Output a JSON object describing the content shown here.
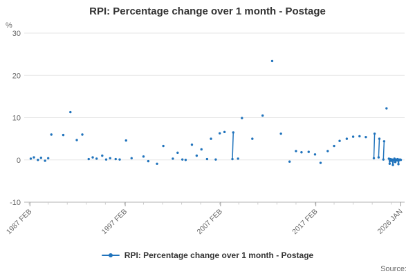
{
  "chart": {
    "title": "RPI: Percentage change over 1 month - Postage",
    "unit_label": "%"
  },
  "legend": {
    "label": "RPI: Percentage change over 1 month - Postage"
  },
  "source": {
    "label": "Source:"
  },
  "colors": {
    "series": "#2073bc",
    "grid": "#e6e6e6",
    "axis": "#b3b3b3",
    "tick_major": "#999999",
    "tick_minor": "#cccccc",
    "axis_text": "#666666",
    "title_text": "#333333"
  },
  "chart_data": {
    "type": "scatter",
    "title": "RPI: Percentage change over 1 month - Postage",
    "xlabel": "",
    "ylabel": "%",
    "ylim": [
      -10,
      30
    ],
    "yticks": [
      -10,
      0,
      10,
      20,
      30
    ],
    "xticks": [
      {
        "label": "1987 FEB",
        "year": 1987.083
      },
      {
        "label": "1997 FEB",
        "year": 1997.083
      },
      {
        "label": "2007 FEB",
        "year": 2007.083
      },
      {
        "label": "2017 FEB",
        "year": 2017.083
      },
      {
        "label": "2026 JAN",
        "year": 2026.0
      }
    ],
    "x_range": [
      1986.7,
      2026.4
    ],
    "grid": true,
    "legend_position": "bottom",
    "connect_threshold_years": 0.12,
    "series_name": "RPI: Percentage change over 1 month - Postage",
    "points": [
      [
        1987.17,
        0.3
      ],
      [
        1987.5,
        0.6
      ],
      [
        1987.92,
        0.0
      ],
      [
        1988.25,
        0.5
      ],
      [
        1988.67,
        -0.2
      ],
      [
        1989.0,
        0.4
      ],
      [
        1989.33,
        6.0
      ],
      [
        1990.58,
        5.9
      ],
      [
        1991.33,
        11.3
      ],
      [
        1992.0,
        4.7
      ],
      [
        1992.58,
        6.0
      ],
      [
        1993.25,
        0.2
      ],
      [
        1993.67,
        0.6
      ],
      [
        1994.08,
        0.3
      ],
      [
        1994.67,
        1.0
      ],
      [
        1995.08,
        0.1
      ],
      [
        1995.5,
        0.4
      ],
      [
        1996.08,
        0.2
      ],
      [
        1996.5,
        0.1
      ],
      [
        1997.17,
        4.6
      ],
      [
        1997.75,
        0.4
      ],
      [
        1999.0,
        0.8
      ],
      [
        1999.5,
        -0.3
      ],
      [
        2000.42,
        -0.9
      ],
      [
        2001.08,
        3.3
      ],
      [
        2002.08,
        0.3
      ],
      [
        2002.58,
        1.7
      ],
      [
        2003.08,
        0.1
      ],
      [
        2003.42,
        0.0
      ],
      [
        2004.08,
        3.6
      ],
      [
        2004.58,
        1.0
      ],
      [
        2005.08,
        2.5
      ],
      [
        2005.67,
        0.2
      ],
      [
        2006.08,
        5.0
      ],
      [
        2006.58,
        0.1
      ],
      [
        2007.0,
        6.3
      ],
      [
        2007.5,
        6.6
      ],
      [
        2008.33,
        0.2
      ],
      [
        2008.42,
        6.5
      ],
      [
        2008.92,
        0.3
      ],
      [
        2009.33,
        9.9
      ],
      [
        2010.42,
        5.0
      ],
      [
        2011.5,
        10.5
      ],
      [
        2012.5,
        23.4
      ],
      [
        2013.42,
        6.2
      ],
      [
        2014.33,
        -0.4
      ],
      [
        2015.0,
        2.1
      ],
      [
        2015.58,
        1.8
      ],
      [
        2016.33,
        1.9
      ],
      [
        2017.0,
        1.3
      ],
      [
        2017.58,
        -0.7
      ],
      [
        2018.33,
        2.1
      ],
      [
        2019.0,
        3.3
      ],
      [
        2019.58,
        4.5
      ],
      [
        2020.33,
        5.0
      ],
      [
        2021.0,
        5.5
      ],
      [
        2021.67,
        5.6
      ],
      [
        2022.33,
        5.4
      ],
      [
        2023.17,
        0.4
      ],
      [
        2023.25,
        6.2
      ],
      [
        2023.67,
        0.6
      ],
      [
        2023.75,
        5.0
      ],
      [
        2024.17,
        0.1
      ],
      [
        2024.25,
        4.4
      ],
      [
        2024.5,
        12.2
      ],
      [
        2024.75,
        0.3
      ],
      [
        2024.83,
        -0.9
      ],
      [
        2024.92,
        0.2
      ],
      [
        2025.0,
        -0.2
      ],
      [
        2025.08,
        0.1
      ],
      [
        2025.17,
        -1.2
      ],
      [
        2025.25,
        0.0
      ],
      [
        2025.33,
        0.3
      ],
      [
        2025.42,
        -0.5
      ],
      [
        2025.5,
        0.1
      ],
      [
        2025.58,
        -0.1
      ],
      [
        2025.67,
        0.2
      ],
      [
        2025.75,
        -1.0
      ],
      [
        2025.83,
        0.0
      ],
      [
        2025.92,
        0.1
      ],
      [
        2026.0,
        0.0
      ]
    ]
  }
}
